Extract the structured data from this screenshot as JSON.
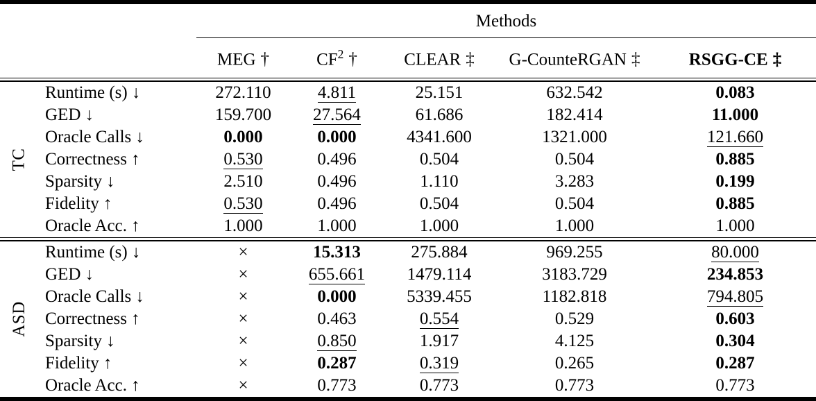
{
  "table": {
    "span_header": "Methods",
    "columns": [
      {
        "name": "MEG",
        "sup": "",
        "mark": "†",
        "bold": false
      },
      {
        "name": "CF",
        "sup": "2",
        "mark": "†",
        "bold": false
      },
      {
        "name": "CLEAR",
        "sup": "",
        "mark": "‡",
        "bold": false
      },
      {
        "name": "G-CounteRGAN",
        "sup": "",
        "mark": "‡",
        "bold": false
      },
      {
        "name": "RSGG-CE",
        "sup": "",
        "mark": "‡",
        "bold": true
      }
    ],
    "sections": [
      {
        "label": "TC",
        "rows": [
          {
            "metric": "Runtime (s) ↓",
            "values": [
              {
                "text": "272.110",
                "style": "plain"
              },
              {
                "text": "4.811",
                "style": "underline"
              },
              {
                "text": "25.151",
                "style": "plain"
              },
              {
                "text": "632.542",
                "style": "plain"
              },
              {
                "text": "0.083",
                "style": "bold"
              }
            ]
          },
          {
            "metric": "GED ↓",
            "values": [
              {
                "text": "159.700",
                "style": "plain"
              },
              {
                "text": "27.564",
                "style": "underline"
              },
              {
                "text": "61.686",
                "style": "plain"
              },
              {
                "text": "182.414",
                "style": "plain"
              },
              {
                "text": "11.000",
                "style": "bold"
              }
            ]
          },
          {
            "metric": "Oracle Calls ↓",
            "values": [
              {
                "text": "0.000",
                "style": "bold"
              },
              {
                "text": "0.000",
                "style": "bold"
              },
              {
                "text": "4341.600",
                "style": "plain"
              },
              {
                "text": "1321.000",
                "style": "plain"
              },
              {
                "text": "121.660",
                "style": "underline"
              }
            ]
          },
          {
            "metric": "Correctness ↑",
            "values": [
              {
                "text": "0.530",
                "style": "underline"
              },
              {
                "text": "0.496",
                "style": "plain"
              },
              {
                "text": "0.504",
                "style": "plain"
              },
              {
                "text": "0.504",
                "style": "plain"
              },
              {
                "text": "0.885",
                "style": "bold"
              }
            ]
          },
          {
            "metric": "Sparsity ↓",
            "values": [
              {
                "text": "2.510",
                "style": "plain"
              },
              {
                "text": "0.496",
                "style": "plain"
              },
              {
                "text": "1.110",
                "style": "plain"
              },
              {
                "text": "3.283",
                "style": "plain"
              },
              {
                "text": "0.199",
                "style": "bold"
              }
            ]
          },
          {
            "metric": "Fidelity ↑",
            "values": [
              {
                "text": "0.530",
                "style": "underline"
              },
              {
                "text": "0.496",
                "style": "plain"
              },
              {
                "text": "0.504",
                "style": "plain"
              },
              {
                "text": "0.504",
                "style": "plain"
              },
              {
                "text": "0.885",
                "style": "bold"
              }
            ]
          },
          {
            "metric": "Oracle Acc. ↑",
            "values": [
              {
                "text": "1.000",
                "style": "plain"
              },
              {
                "text": "1.000",
                "style": "plain"
              },
              {
                "text": "1.000",
                "style": "plain"
              },
              {
                "text": "1.000",
                "style": "plain"
              },
              {
                "text": "1.000",
                "style": "plain"
              }
            ]
          }
        ]
      },
      {
        "label": "ASD",
        "rows": [
          {
            "metric": "Runtime (s) ↓",
            "values": [
              {
                "text": "×",
                "style": "plain"
              },
              {
                "text": "15.313",
                "style": "bold"
              },
              {
                "text": "275.884",
                "style": "plain"
              },
              {
                "text": "969.255",
                "style": "plain"
              },
              {
                "text": "80.000",
                "style": "underline"
              }
            ]
          },
          {
            "metric": "GED ↓",
            "values": [
              {
                "text": "×",
                "style": "plain"
              },
              {
                "text": "655.661",
                "style": "underline"
              },
              {
                "text": "1479.114",
                "style": "plain"
              },
              {
                "text": "3183.729",
                "style": "plain"
              },
              {
                "text": "234.853",
                "style": "bold"
              }
            ]
          },
          {
            "metric": "Oracle Calls ↓",
            "values": [
              {
                "text": "×",
                "style": "plain"
              },
              {
                "text": "0.000",
                "style": "bold"
              },
              {
                "text": "5339.455",
                "style": "plain"
              },
              {
                "text": "1182.818",
                "style": "plain"
              },
              {
                "text": "794.805",
                "style": "underline"
              }
            ]
          },
          {
            "metric": "Correctness ↑",
            "values": [
              {
                "text": "×",
                "style": "plain"
              },
              {
                "text": "0.463",
                "style": "plain"
              },
              {
                "text": "0.554",
                "style": "underline"
              },
              {
                "text": "0.529",
                "style": "plain"
              },
              {
                "text": "0.603",
                "style": "bold"
              }
            ]
          },
          {
            "metric": "Sparsity ↓",
            "values": [
              {
                "text": "×",
                "style": "plain"
              },
              {
                "text": "0.850",
                "style": "underline"
              },
              {
                "text": "1.917",
                "style": "plain"
              },
              {
                "text": "4.125",
                "style": "plain"
              },
              {
                "text": "0.304",
                "style": "bold"
              }
            ]
          },
          {
            "metric": "Fidelity ↑",
            "values": [
              {
                "text": "×",
                "style": "plain"
              },
              {
                "text": "0.287",
                "style": "bold"
              },
              {
                "text": "0.319",
                "style": "underline"
              },
              {
                "text": "0.265",
                "style": "plain"
              },
              {
                "text": "0.287",
                "style": "bold"
              }
            ]
          },
          {
            "metric": "Oracle Acc. ↑",
            "values": [
              {
                "text": "×",
                "style": "plain"
              },
              {
                "text": "0.773",
                "style": "plain"
              },
              {
                "text": "0.773",
                "style": "plain"
              },
              {
                "text": "0.773",
                "style": "plain"
              },
              {
                "text": "0.773",
                "style": "plain"
              }
            ]
          }
        ]
      }
    ]
  }
}
